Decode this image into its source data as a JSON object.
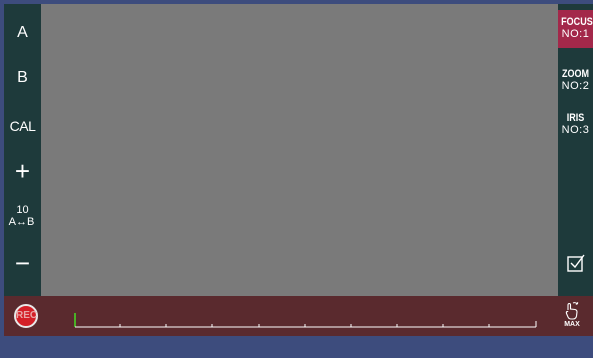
{
  "left_panel": {
    "a_label": "A",
    "b_label": "B",
    "cal_label": "CAL",
    "plus_label": "+",
    "ab_value": "10",
    "ab_label": "A↔B",
    "minus_label": "−"
  },
  "right_panel": {
    "focus": {
      "title": "FOCUS",
      "no": "NO:1"
    },
    "zoom": {
      "title": "ZOOM",
      "no": "NO:2"
    },
    "iris": {
      "title": "IRIS",
      "no": "NO:3"
    }
  },
  "bottom_bar": {
    "rec_label": "REC",
    "max_label": "MAX"
  },
  "colors": {
    "background": "#3d4c7d",
    "panel": "#1e3a3b",
    "viewport": "#7a7a7a",
    "active_tab": "#a3284a",
    "bottom_bar": "#5a2a2e",
    "rec": "#d41f27",
    "playhead": "#44dd22"
  },
  "icons": {
    "apply": "checkbox-check-icon",
    "max": "hand-pointer-icon"
  }
}
